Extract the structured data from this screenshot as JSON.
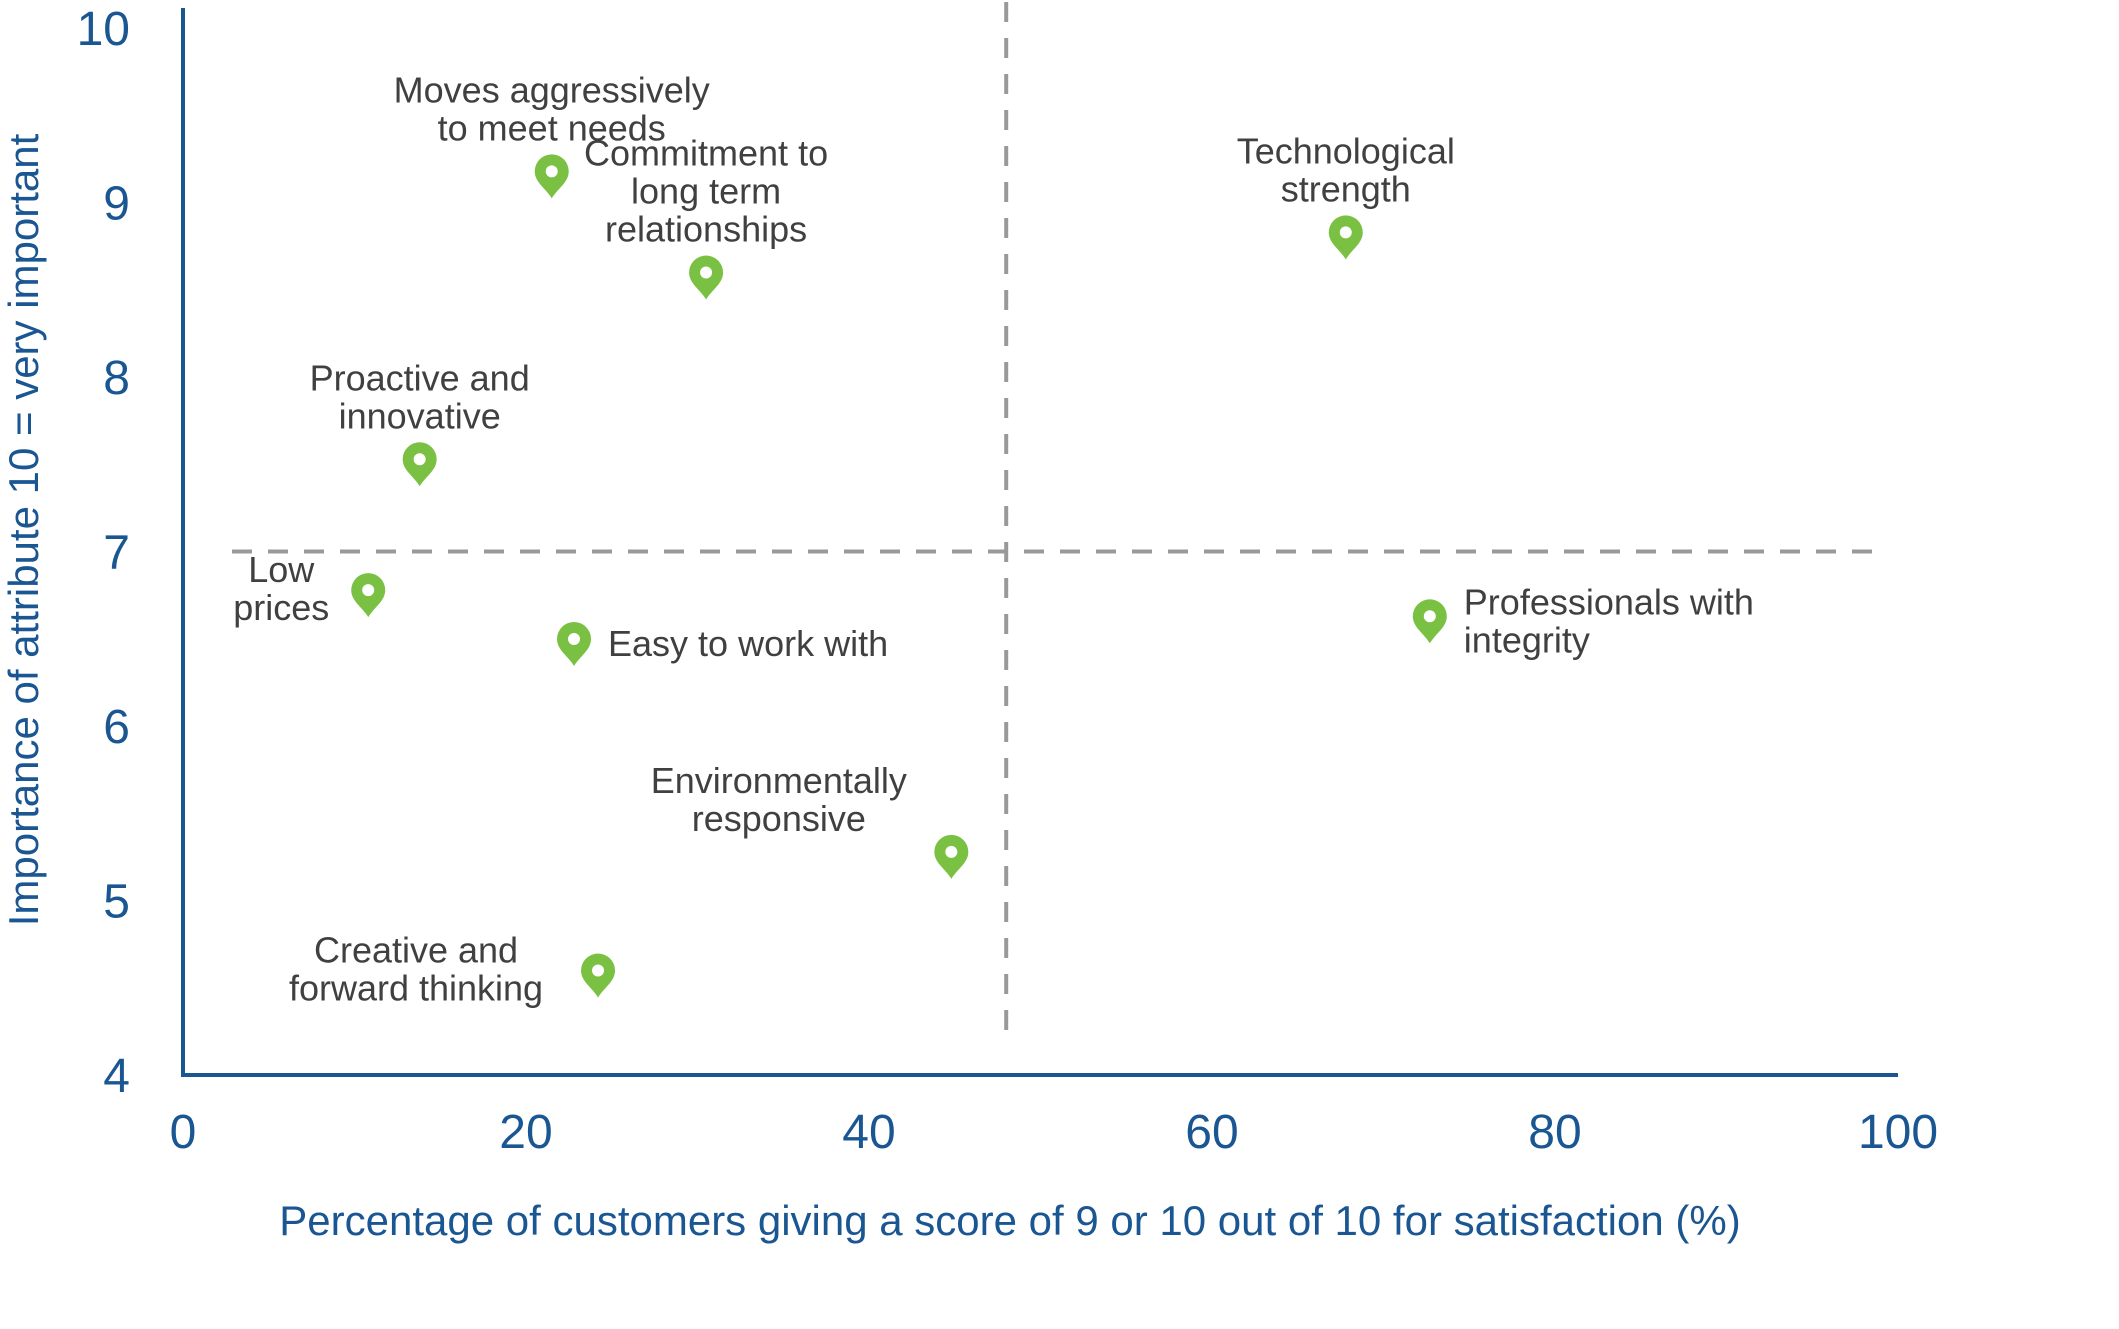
{
  "chart_data": {
    "type": "scatter",
    "title": "",
    "xlabel": "Percentage of customers giving a score of 9 or 10 out of 10 for satisfaction (%)",
    "ylabel": "Importance of attribute 10 = very important",
    "xlim": [
      0,
      100
    ],
    "ylim": [
      4,
      10
    ],
    "xticks": [
      "0",
      "20",
      "40",
      "60",
      "80",
      "100"
    ],
    "yticks": [
      "4",
      "5",
      "6",
      "7",
      "8",
      "9",
      "10"
    ],
    "grid": false,
    "quadrant_lines": {
      "x": 48,
      "y": 7
    },
    "marker_color": "#7ac143",
    "axis_color": "#1a5692",
    "points": [
      {
        "label": [
          "Moves aggressively",
          "to meet needs"
        ],
        "x": 21.5,
        "y": 9.15,
        "label_pos": "above"
      },
      {
        "label": [
          "Commitment to",
          "long term",
          "relationships"
        ],
        "x": 30.5,
        "y": 8.57,
        "label_pos": "above"
      },
      {
        "label": [
          "Technological",
          "strength"
        ],
        "x": 67.8,
        "y": 8.8,
        "label_pos": "above"
      },
      {
        "label": [
          "Proactive and",
          "innovative"
        ],
        "x": 13.8,
        "y": 7.5,
        "label_pos": "above"
      },
      {
        "label": [
          "Low",
          "prices"
        ],
        "x": 10.8,
        "y": 6.75,
        "label_pos": "left"
      },
      {
        "label": [
          "Easy to work with"
        ],
        "x": 22.8,
        "y": 6.47,
        "label_pos": "right"
      },
      {
        "label": [
          "Professionals with",
          "integrity"
        ],
        "x": 72.7,
        "y": 6.6,
        "label_pos": "right"
      },
      {
        "label": [
          "Environmentally",
          "responsive"
        ],
        "x": 44.8,
        "y": 5.25,
        "label_pos": "upleft"
      },
      {
        "label": [
          "Creative and",
          "forward thinking"
        ],
        "x": 24.2,
        "y": 4.57,
        "label_pos": "left"
      }
    ]
  }
}
